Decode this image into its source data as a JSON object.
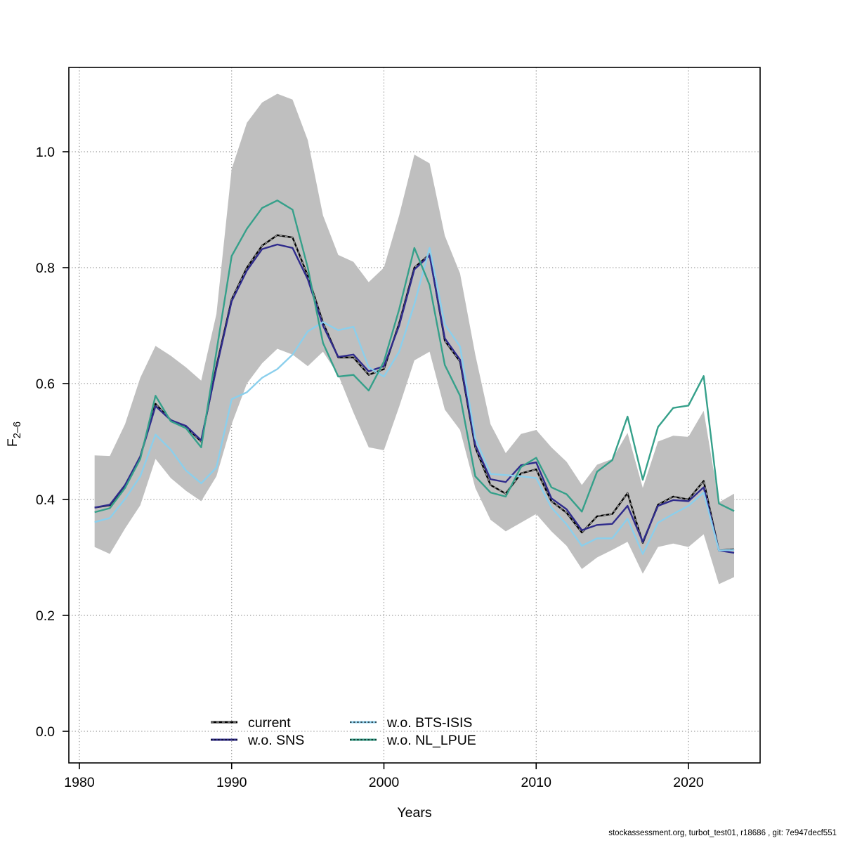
{
  "page": {
    "background": "#ffffff"
  },
  "footer": {
    "text": "stockassessment.org, turbot_test01, r18686 , git: 7e947decf551"
  },
  "legend": {
    "entries": [
      {
        "label": "current",
        "color": "#000000",
        "overlay": "#a0a0a0",
        "overlay_dash": "4 4"
      },
      {
        "label": "w.o. SNS",
        "color": "#2f2b8c",
        "overlay": "#000000",
        "overlay_dash": "2.5 2.6"
      },
      {
        "label": "w.o. BTS-ISIS",
        "color": "#8bcfec",
        "overlay": "#000000",
        "overlay_dash": "2.5 2.6"
      },
      {
        "label": "w.o. NL_LPUE",
        "color": "#35a08a",
        "overlay": "#000000",
        "overlay_dash": "2.5 2.6"
      }
    ]
  },
  "chart_data": {
    "type": "line",
    "title": "",
    "xlabel": "Years",
    "ylabel_main": "F",
    "ylabel_sub": "2–6",
    "grid": "dotted",
    "legend_position": "bottom-center-inside",
    "xlim": [
      1979.3,
      2024.7
    ],
    "ylim": [
      -0.055,
      1.145
    ],
    "x_tick_labels": [
      "1980",
      "1990",
      "2000",
      "2010",
      "2020"
    ],
    "x_tick_values": [
      1980,
      1990,
      2000,
      2010,
      2020
    ],
    "y_tick_labels": [
      "0.0",
      "0.2",
      "0.4",
      "0.6",
      "0.8",
      "1.0"
    ],
    "y_tick_values": [
      0.0,
      0.2,
      0.4,
      0.6,
      0.8,
      1.0
    ],
    "band_color": "#bfbfbf",
    "grid_color": "#808080",
    "years": [
      1981,
      1982,
      1983,
      1984,
      1985,
      1986,
      1987,
      1988,
      1989,
      1990,
      1991,
      1992,
      1993,
      1994,
      1995,
      1996,
      1997,
      1998,
      1999,
      2000,
      2001,
      2002,
      2003,
      2004,
      2005,
      2006,
      2007,
      2008,
      2009,
      2010,
      2011,
      2012,
      2013,
      2014,
      2015,
      2016,
      2017,
      2018,
      2019,
      2020,
      2021,
      2022,
      2023
    ],
    "series": [
      {
        "name": "current",
        "color": "#000000",
        "style": "solid-with-gray-dash-overlay",
        "values": [
          0.386,
          0.39,
          0.424,
          0.474,
          0.565,
          0.537,
          0.525,
          0.5,
          0.63,
          0.745,
          0.8,
          0.838,
          0.856,
          0.852,
          0.786,
          0.705,
          0.645,
          0.645,
          0.615,
          0.625,
          0.704,
          0.8,
          0.823,
          0.674,
          0.638,
          0.49,
          0.425,
          0.41,
          0.445,
          0.452,
          0.397,
          0.377,
          0.343,
          0.371,
          0.375,
          0.411,
          0.325,
          0.391,
          0.405,
          0.4,
          0.432,
          0.312,
          0.314
        ]
      },
      {
        "name": "w.o. SNS",
        "color": "#2f2b8c",
        "style": "solid",
        "values": [
          0.386,
          0.391,
          0.425,
          0.474,
          0.561,
          0.537,
          0.527,
          0.502,
          0.627,
          0.742,
          0.795,
          0.832,
          0.84,
          0.834,
          0.78,
          0.7,
          0.646,
          0.65,
          0.621,
          0.63,
          0.7,
          0.797,
          0.821,
          0.678,
          0.641,
          0.494,
          0.435,
          0.43,
          0.459,
          0.464,
          0.402,
          0.383,
          0.347,
          0.356,
          0.358,
          0.389,
          0.327,
          0.389,
          0.399,
          0.397,
          0.421,
          0.312,
          0.308
        ]
      },
      {
        "name": "w.o. BTS-ISIS",
        "color": "#8bcfec",
        "style": "solid",
        "values": [
          0.361,
          0.368,
          0.401,
          0.44,
          0.512,
          0.486,
          0.45,
          0.428,
          0.455,
          0.573,
          0.585,
          0.61,
          0.625,
          0.65,
          0.69,
          0.706,
          0.692,
          0.698,
          0.628,
          0.612,
          0.655,
          0.737,
          0.834,
          0.702,
          0.664,
          0.505,
          0.444,
          0.442,
          0.44,
          0.437,
          0.386,
          0.357,
          0.32,
          0.333,
          0.333,
          0.367,
          0.306,
          0.36,
          0.375,
          0.389,
          0.412,
          0.312,
          0.313
        ]
      },
      {
        "name": "w.o. NL_LPUE",
        "color": "#35a08a",
        "style": "solid",
        "values": [
          0.378,
          0.385,
          0.42,
          0.47,
          0.579,
          0.535,
          0.523,
          0.49,
          0.655,
          0.82,
          0.867,
          0.903,
          0.916,
          0.9,
          0.8,
          0.67,
          0.612,
          0.615,
          0.588,
          0.638,
          0.728,
          0.834,
          0.77,
          0.632,
          0.579,
          0.44,
          0.412,
          0.405,
          0.456,
          0.472,
          0.421,
          0.409,
          0.379,
          0.448,
          0.468,
          0.543,
          0.434,
          0.525,
          0.558,
          0.562,
          0.613,
          0.393,
          0.38
        ]
      }
    ],
    "band": {
      "name": "current-confidence-interval",
      "upper": [
        0.476,
        0.475,
        0.53,
        0.61,
        0.665,
        0.648,
        0.628,
        0.605,
        0.72,
        0.97,
        1.05,
        1.085,
        1.1,
        1.09,
        1.02,
        0.89,
        0.822,
        0.81,
        0.775,
        0.8,
        0.89,
        0.995,
        0.98,
        0.855,
        0.79,
        0.65,
        0.53,
        0.48,
        0.513,
        0.52,
        0.49,
        0.465,
        0.425,
        0.46,
        0.47,
        0.515,
        0.42,
        0.5,
        0.51,
        0.508,
        0.553,
        0.395,
        0.41
      ],
      "lower": [
        0.318,
        0.306,
        0.35,
        0.39,
        0.47,
        0.437,
        0.415,
        0.397,
        0.44,
        0.53,
        0.6,
        0.635,
        0.66,
        0.65,
        0.63,
        0.655,
        0.615,
        0.55,
        0.49,
        0.485,
        0.56,
        0.64,
        0.655,
        0.555,
        0.52,
        0.42,
        0.365,
        0.345,
        0.36,
        0.375,
        0.345,
        0.32,
        0.28,
        0.3,
        0.313,
        0.327,
        0.272,
        0.318,
        0.324,
        0.318,
        0.34,
        0.254,
        0.266
      ]
    }
  }
}
